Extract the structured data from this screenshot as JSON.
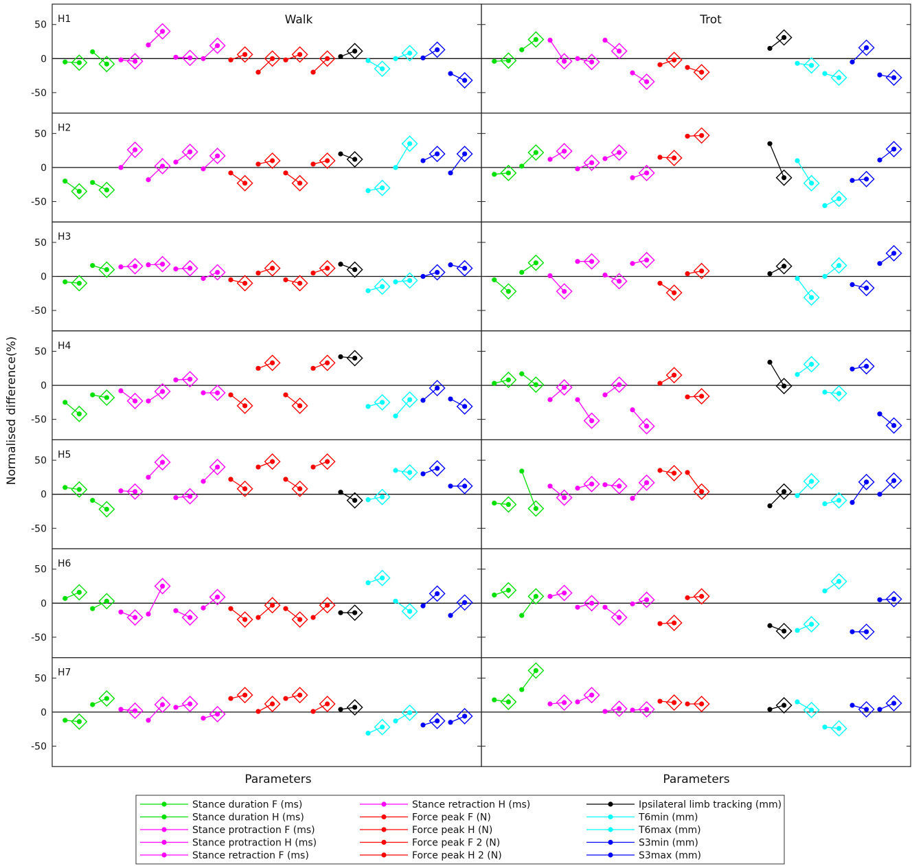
{
  "chart_data": {
    "type": "scatter",
    "ylabel": "Normalised difference(%)",
    "xlabel": "Parameters",
    "ylim": [
      -80,
      80
    ],
    "yticks": [
      50,
      0,
      -50
    ],
    "grid": false,
    "panels": [
      {
        "title": "Walk"
      },
      {
        "title": "Trot"
      }
    ],
    "rows": [
      "H1",
      "H2",
      "H3",
      "H4",
      "H5",
      "H6",
      "H7"
    ],
    "series": [
      {
        "name": "Stance duration F (ms)",
        "color": "#00e000"
      },
      {
        "name": "Stance duration H (ms)",
        "color": "#00e000"
      },
      {
        "name": "Stance protraction F (ms)",
        "color": "#ff00ff"
      },
      {
        "name": "Stance protraction H (ms)",
        "color": "#ff00ff"
      },
      {
        "name": "Stance retraction F (ms)",
        "color": "#ff00ff"
      },
      {
        "name": "Stance retraction H (ms)",
        "color": "#ff00ff"
      },
      {
        "name": "Force peak F (N)",
        "color": "#ff0000"
      },
      {
        "name": "Force peak H (N)",
        "color": "#ff0000"
      },
      {
        "name": "Force peak F 2 (N)",
        "color": "#ff0000"
      },
      {
        "name": "Force peak H 2 (N)",
        "color": "#ff0000"
      },
      {
        "name": "Ipsilateral limb tracking (mm)",
        "color": "#000000"
      },
      {
        "name": "T6min (mm)",
        "color": "#00ffff"
      },
      {
        "name": "T6max (mm)",
        "color": "#00ffff"
      },
      {
        "name": "S3min (mm)",
        "color": "#0000ff"
      },
      {
        "name": "S3max (mm)",
        "color": "#0000ff"
      }
    ],
    "values": {
      "Walk": {
        "H1": [
          [
            -5,
            -6
          ],
          [
            10,
            -8
          ],
          [
            -2,
            -4
          ],
          [
            20,
            40
          ],
          [
            2,
            1
          ],
          [
            0,
            19
          ],
          [
            -2,
            6
          ],
          [
            -20,
            0
          ],
          [
            -2,
            6
          ],
          [
            -20,
            0
          ],
          [
            3,
            11
          ],
          [
            -3,
            -15
          ],
          [
            0,
            8
          ],
          [
            1,
            13
          ],
          [
            -22,
            -32
          ]
        ],
        "H2": [
          [
            -20,
            -35
          ],
          [
            -22,
            -33
          ],
          [
            0,
            26
          ],
          [
            -18,
            2
          ],
          [
            8,
            23
          ],
          [
            -2,
            17
          ],
          [
            -8,
            -23
          ],
          [
            5,
            10
          ],
          [
            -8,
            -23
          ],
          [
            5,
            10
          ],
          [
            20,
            12
          ],
          [
            -34,
            -30
          ],
          [
            0,
            35
          ],
          [
            10,
            20
          ],
          [
            -8,
            20
          ]
        ],
        "H3": [
          [
            -8,
            -10
          ],
          [
            16,
            10
          ],
          [
            14,
            15
          ],
          [
            17,
            18
          ],
          [
            11,
            12
          ],
          [
            -3,
            6
          ],
          [
            -5,
            -10
          ],
          [
            5,
            12
          ],
          [
            -5,
            -10
          ],
          [
            5,
            12
          ],
          [
            18,
            10
          ],
          [
            -21,
            -15
          ],
          [
            -8,
            -6
          ],
          [
            0,
            6
          ],
          [
            17,
            12
          ]
        ],
        "H4": [
          [
            -25,
            -42
          ],
          [
            -14,
            -18
          ],
          [
            -8,
            -23
          ],
          [
            -23,
            -9
          ],
          [
            8,
            9
          ],
          [
            -11,
            -11
          ],
          [
            -14,
            -30
          ],
          [
            25,
            33
          ],
          [
            -14,
            -30
          ],
          [
            25,
            33
          ],
          [
            42,
            40
          ],
          [
            -31,
            -25
          ],
          [
            -45,
            -21
          ],
          [
            -22,
            -4
          ],
          [
            -20,
            -31
          ]
        ],
        "H5": [
          [
            10,
            7
          ],
          [
            -9,
            -22
          ],
          [
            5,
            4
          ],
          [
            25,
            47
          ],
          [
            -5,
            -3
          ],
          [
            19,
            40
          ],
          [
            22,
            8
          ],
          [
            40,
            48
          ],
          [
            22,
            8
          ],
          [
            40,
            48
          ],
          [
            3,
            -9
          ],
          [
            -8,
            -4
          ],
          [
            35,
            32
          ],
          [
            30,
            38
          ],
          [
            12,
            12
          ]
        ],
        "H6": [
          [
            7,
            16
          ],
          [
            -8,
            3
          ],
          [
            -13,
            -21
          ],
          [
            -16,
            25
          ],
          [
            -11,
            -21
          ],
          [
            -7,
            9
          ],
          [
            -8,
            -24
          ],
          [
            -21,
            -3
          ],
          [
            -8,
            -24
          ],
          [
            -21,
            -3
          ],
          [
            -14,
            -14
          ],
          [
            30,
            37
          ],
          [
            3,
            -12
          ],
          [
            -4,
            14
          ],
          [
            -18,
            1
          ]
        ],
        "H7": [
          [
            -12,
            -14
          ],
          [
            11,
            20
          ],
          [
            4,
            2
          ],
          [
            -12,
            11
          ],
          [
            7,
            12
          ],
          [
            -9,
            -3
          ],
          [
            20,
            25
          ],
          [
            1,
            12
          ],
          [
            20,
            25
          ],
          [
            1,
            12
          ],
          [
            4,
            7
          ],
          [
            -31,
            -22
          ],
          [
            -13,
            -1
          ],
          [
            -19,
            -13
          ],
          [
            -15,
            -6
          ]
        ]
      },
      "Trot": {
        "H1": [
          [
            -4,
            -3
          ],
          [
            13,
            28
          ],
          [
            27,
            -4
          ],
          [
            0,
            -5
          ],
          [
            27,
            11
          ],
          [
            -21,
            -34
          ],
          [
            -9,
            -2
          ],
          [
            -13,
            -20
          ],
          null,
          null,
          [
            15,
            31
          ],
          [
            -7,
            -10
          ],
          [
            -22,
            -28
          ],
          [
            -5,
            16
          ],
          [
            -24,
            -28
          ]
        ],
        "H2": [
          [
            -10,
            -8
          ],
          [
            2,
            22
          ],
          [
            12,
            24
          ],
          [
            -2,
            7
          ],
          [
            13,
            22
          ],
          [
            -15,
            -8
          ],
          [
            15,
            14
          ],
          [
            46,
            47
          ],
          null,
          null,
          [
            35,
            -15
          ],
          [
            10,
            -23
          ],
          [
            -56,
            -46
          ],
          [
            -19,
            -17
          ],
          [
            11,
            27
          ]
        ],
        "H3": [
          [
            -5,
            -22
          ],
          [
            6,
            20
          ],
          [
            1,
            -22
          ],
          [
            22,
            22
          ],
          [
            2,
            -7
          ],
          [
            19,
            24
          ],
          [
            -10,
            -24
          ],
          [
            4,
            8
          ],
          null,
          null,
          [
            4,
            15
          ],
          [
            -3,
            -31
          ],
          [
            0,
            16
          ],
          [
            -12,
            -17
          ],
          [
            19,
            34
          ]
        ],
        "H4": [
          [
            3,
            8
          ],
          [
            17,
            1
          ],
          [
            -21,
            -3
          ],
          [
            -21,
            -52
          ],
          [
            -14,
            1
          ],
          [
            -36,
            -60
          ],
          [
            3,
            15
          ],
          [
            -17,
            -16
          ],
          null,
          null,
          [
            34,
            -1
          ],
          [
            16,
            31
          ],
          [
            -10,
            -12
          ],
          [
            24,
            28
          ],
          [
            -42,
            -59
          ]
        ],
        "H5": [
          [
            -13,
            -15
          ],
          [
            34,
            -21
          ],
          [
            12,
            -5
          ],
          [
            9,
            15
          ],
          [
            14,
            12
          ],
          [
            -6,
            17
          ],
          [
            35,
            31
          ],
          [
            32,
            4
          ],
          null,
          null,
          [
            -17,
            4
          ],
          [
            -2,
            19
          ],
          [
            -14,
            -9
          ],
          [
            -12,
            18
          ],
          [
            0,
            20
          ]
        ],
        "H6": [
          [
            12,
            19
          ],
          [
            -18,
            10
          ],
          [
            10,
            15
          ],
          [
            -6,
            0
          ],
          [
            -6,
            -21
          ],
          [
            -1,
            5
          ],
          [
            -30,
            -29
          ],
          [
            8,
            10
          ],
          null,
          null,
          [
            -33,
            -41
          ],
          [
            -40,
            -31
          ],
          [
            18,
            32
          ],
          [
            -42,
            -42
          ],
          [
            5,
            6
          ]
        ],
        "H7": [
          [
            18,
            15
          ],
          [
            33,
            61
          ],
          [
            12,
            14
          ],
          [
            15,
            25
          ],
          [
            1,
            5
          ],
          [
            3,
            4
          ],
          [
            16,
            14
          ],
          [
            12,
            12
          ],
          null,
          null,
          [
            4,
            10
          ],
          [
            15,
            3
          ],
          [
            -22,
            -24
          ],
          [
            10,
            4
          ],
          [
            4,
            13
          ]
        ]
      }
    }
  }
}
